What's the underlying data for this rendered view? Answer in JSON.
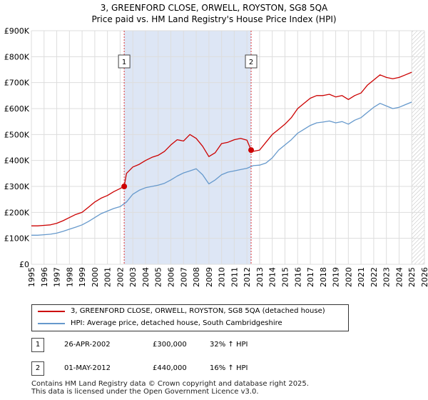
{
  "title_line1": "3, GREENFORD CLOSE, ORWELL, ROYSTON, SG8 5QA",
  "title_line2": "Price paid vs. HM Land Registry's House Price Index (HPI)",
  "colors": {
    "property": "#cc0000",
    "hpi": "#6699cc",
    "band": "#dde6f5",
    "grid": "#dddddd"
  },
  "chart_data": {
    "type": "line",
    "xlim": [
      1995,
      2026
    ],
    "ylim": [
      0,
      900000
    ],
    "y_ticks": [
      0,
      100000,
      200000,
      300000,
      400000,
      500000,
      600000,
      700000,
      800000,
      900000
    ],
    "y_tick_labels": [
      "£0",
      "£100K",
      "£200K",
      "£300K",
      "£400K",
      "£500K",
      "£600K",
      "£700K",
      "£800K",
      "£900K"
    ],
    "x_ticks": [
      "1995",
      "1996",
      "1997",
      "1998",
      "1999",
      "2000",
      "2001",
      "2002",
      "2003",
      "2004",
      "2005",
      "2006",
      "2007",
      "2008",
      "2009",
      "2010",
      "2011",
      "2012",
      "2013",
      "2014",
      "2015",
      "2016",
      "2017",
      "2018",
      "2019",
      "2020",
      "2021",
      "2022",
      "2023",
      "2024",
      "2025",
      "2026"
    ],
    "grid": true,
    "hatched_region": [
      2025.0,
      2026
    ],
    "series": [
      {
        "name": "3, GREENFORD CLOSE, ORWELL, ROYSTON, SG8 5QA (detached house)",
        "x": [
          1995.0,
          1995.5,
          1996.0,
          1996.5,
          1997.0,
          1997.5,
          1998.0,
          1998.5,
          1999.0,
          1999.5,
          2000.0,
          2000.5,
          2001.0,
          2001.5,
          2002.0,
          2002.32,
          2002.5,
          2003.0,
          2003.5,
          2004.0,
          2004.5,
          2005.0,
          2005.5,
          2006.0,
          2006.5,
          2007.0,
          2007.5,
          2008.0,
          2008.5,
          2009.0,
          2009.5,
          2010.0,
          2010.5,
          2011.0,
          2011.5,
          2012.0,
          2012.33,
          2012.5,
          2013.0,
          2013.5,
          2014.0,
          2014.5,
          2015.0,
          2015.5,
          2016.0,
          2016.5,
          2017.0,
          2017.5,
          2018.0,
          2018.5,
          2019.0,
          2019.5,
          2020.0,
          2020.5,
          2021.0,
          2021.5,
          2022.0,
          2022.5,
          2023.0,
          2023.5,
          2024.0,
          2024.5,
          2025.0
        ],
        "y": [
          148000,
          148000,
          150000,
          152000,
          158000,
          168000,
          180000,
          192000,
          200000,
          220000,
          240000,
          255000,
          265000,
          280000,
          292000,
          300000,
          350000,
          375000,
          385000,
          400000,
          412000,
          420000,
          435000,
          460000,
          480000,
          475000,
          500000,
          485000,
          455000,
          415000,
          430000,
          465000,
          470000,
          480000,
          485000,
          478000,
          440000,
          435000,
          440000,
          470000,
          500000,
          520000,
          540000,
          565000,
          600000,
          620000,
          640000,
          650000,
          650000,
          655000,
          645000,
          650000,
          635000,
          650000,
          660000,
          690000,
          710000,
          730000,
          720000,
          715000,
          720000,
          730000,
          740000
        ]
      },
      {
        "name": "HPI: Average price, detached house, South Cambridgeshire",
        "x": [
          1995.0,
          1995.5,
          1996.0,
          1996.5,
          1997.0,
          1997.5,
          1998.0,
          1998.5,
          1999.0,
          1999.5,
          2000.0,
          2000.5,
          2001.0,
          2001.5,
          2002.0,
          2002.5,
          2003.0,
          2003.5,
          2004.0,
          2004.5,
          2005.0,
          2005.5,
          2006.0,
          2006.5,
          2007.0,
          2007.5,
          2008.0,
          2008.5,
          2009.0,
          2009.5,
          2010.0,
          2010.5,
          2011.0,
          2011.5,
          2012.0,
          2012.5,
          2013.0,
          2013.5,
          2014.0,
          2014.5,
          2015.0,
          2015.5,
          2016.0,
          2016.5,
          2017.0,
          2017.5,
          2018.0,
          2018.5,
          2019.0,
          2019.5,
          2020.0,
          2020.5,
          2021.0,
          2021.5,
          2022.0,
          2022.5,
          2023.0,
          2023.5,
          2024.0,
          2024.5,
          2025.0
        ],
        "y": [
          112000,
          112000,
          114000,
          116000,
          120000,
          127000,
          135000,
          143000,
          152000,
          165000,
          180000,
          195000,
          205000,
          215000,
          222000,
          240000,
          270000,
          285000,
          295000,
          300000,
          305000,
          312000,
          325000,
          340000,
          352000,
          360000,
          368000,
          345000,
          310000,
          325000,
          345000,
          355000,
          360000,
          365000,
          370000,
          380000,
          382000,
          390000,
          410000,
          440000,
          460000,
          480000,
          505000,
          520000,
          535000,
          545000,
          548000,
          552000,
          545000,
          550000,
          540000,
          555000,
          565000,
          585000,
          605000,
          620000,
          610000,
          600000,
          605000,
          615000,
          625000
        ]
      }
    ],
    "annotations": [
      {
        "label": "1",
        "x": 2002.32,
        "y": 300000
      },
      {
        "label": "2",
        "x": 2012.33,
        "y": 440000
      }
    ]
  },
  "legend": {
    "property_label": "3, GREENFORD CLOSE, ORWELL, ROYSTON, SG8 5QA (detached house)",
    "hpi_label": "HPI: Average price, detached house, South Cambridgeshire"
  },
  "transactions": [
    {
      "id": "1",
      "date": "26-APR-2002",
      "price": "£300,000",
      "hpi": "32% ↑ HPI"
    },
    {
      "id": "2",
      "date": "01-MAY-2012",
      "price": "£440,000",
      "hpi": "16% ↑ HPI"
    }
  ],
  "footer": {
    "line1": "Contains HM Land Registry data © Crown copyright and database right 2025.",
    "line2": "This data is licensed under the Open Government Licence v3.0."
  }
}
